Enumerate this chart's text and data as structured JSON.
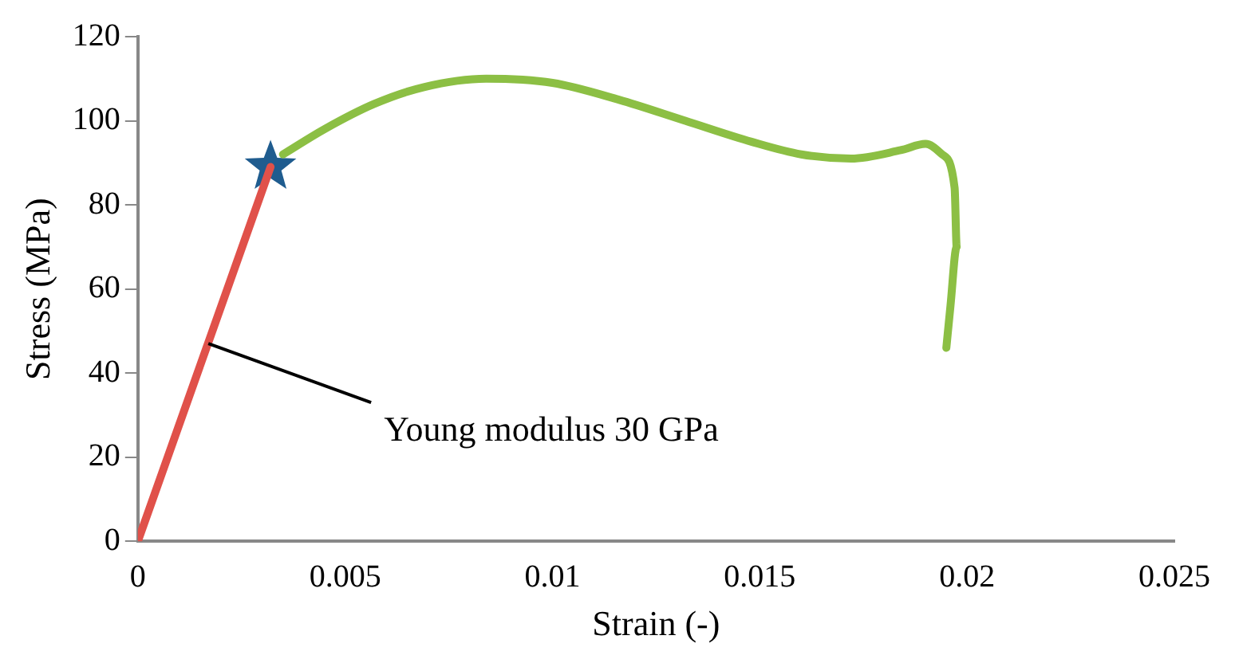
{
  "chart_data": {
    "type": "line",
    "xlabel": "Strain (-)",
    "ylabel": "Stress (MPa)",
    "xlim": [
      0,
      0.025
    ],
    "xticks": [
      0,
      0.005,
      0.01,
      0.015,
      0.02,
      0.025
    ],
    "ylim": [
      0,
      120
    ],
    "yticks": [
      0,
      20,
      40,
      60,
      80,
      100,
      120
    ],
    "grid": false,
    "legend": false,
    "line_style": "solid",
    "series": [
      {
        "color": "#e0514a",
        "x": [
          0,
          0.0032
        ],
        "values": [
          0,
          89
        ],
        "marker": "none"
      },
      {
        "color": "#8cbf44",
        "x": [
          0.0035,
          0.0045,
          0.0057,
          0.0069,
          0.0084,
          0.01,
          0.0116,
          0.0132,
          0.0148,
          0.016,
          0.0172,
          0.0184,
          0.019,
          0.0194,
          0.0197,
          0.01975,
          0.0196,
          0.0195
        ],
        "values": [
          92,
          98,
          104,
          108,
          110,
          109,
          105,
          100,
          95,
          92,
          91,
          93,
          94.5,
          92,
          84,
          70,
          56,
          46
        ],
        "marker": "none"
      },
      {
        "type": "scatter",
        "color": "#1f5c8f",
        "x": [
          0.0032
        ],
        "values": [
          89
        ],
        "marker": "star"
      }
    ],
    "annotations": [
      {
        "text": "Young modulus 30 GPa",
        "x": 0.0017,
        "y": 47
      }
    ]
  }
}
